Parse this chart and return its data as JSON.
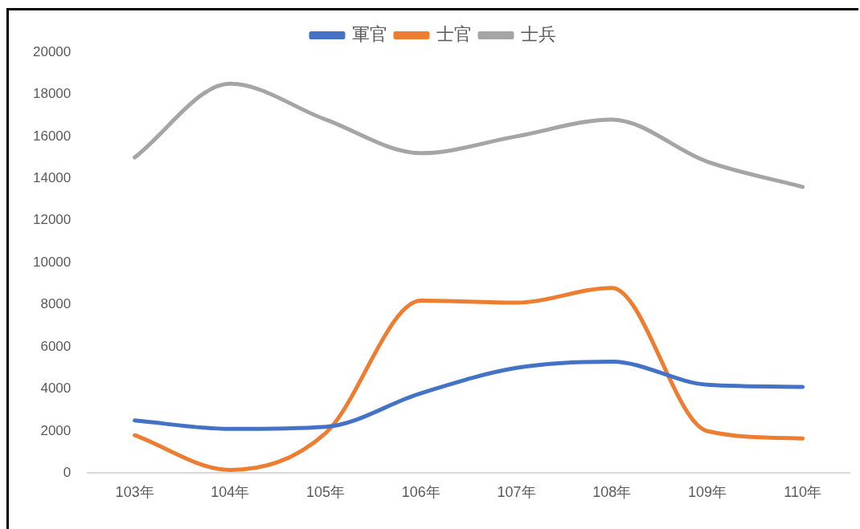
{
  "chart_data": {
    "type": "line",
    "categories": [
      "103年",
      "104年",
      "105年",
      "106年",
      "107年",
      "108年",
      "109年",
      "110年"
    ],
    "series": [
      {
        "name": "軍官",
        "color": "#4472c4",
        "values": [
          2500,
          2100,
          2200,
          3800,
          5000,
          5300,
          4200,
          4100
        ]
      },
      {
        "name": "士官",
        "color": "#ed7d31",
        "values": [
          1800,
          150,
          1900,
          8200,
          8100,
          8800,
          2000,
          1650
        ]
      },
      {
        "name": "士兵",
        "color": "#a5a5a5",
        "values": [
          15000,
          18500,
          16800,
          15200,
          16000,
          16800,
          14800,
          13600
        ]
      }
    ],
    "ylim": [
      0,
      20000
    ],
    "yticks": [
      0,
      2000,
      4000,
      6000,
      8000,
      10000,
      12000,
      14000,
      16000,
      18000,
      20000
    ],
    "grid": false,
    "legend": "top",
    "marker": "none",
    "line_style": "solid"
  }
}
